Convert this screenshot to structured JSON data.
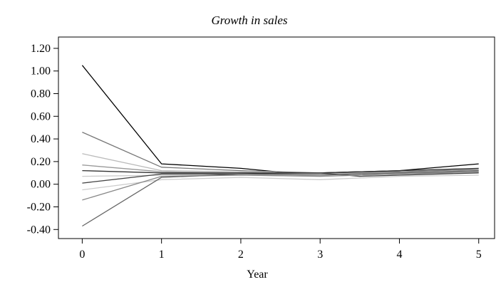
{
  "chart_data": {
    "type": "line",
    "title": "Growth in sales",
    "xlabel": "Year",
    "ylabel": "",
    "x": [
      0,
      1,
      2,
      3,
      4,
      5
    ],
    "xlim": [
      -0.3,
      5.2
    ],
    "ylim": [
      -0.48,
      1.3
    ],
    "x_ticks": [
      0,
      1,
      2,
      3,
      4,
      5
    ],
    "x_tick_labels": [
      "0",
      "1",
      "2",
      "3",
      "4",
      "5"
    ],
    "y_ticks": [
      -0.4,
      -0.2,
      0.0,
      0.2,
      0.4,
      0.6,
      0.8,
      1.0,
      1.2
    ],
    "y_tick_labels": [
      "-0.40",
      "-0.20",
      "0.00",
      "0.20",
      "0.40",
      "0.60",
      "0.80",
      "1.00",
      "1.20"
    ],
    "grid": false,
    "legend": "none",
    "series": [
      {
        "color": "#000000",
        "points": [
          [
            0,
            1.05
          ],
          [
            1,
            0.18
          ],
          [
            2,
            0.14
          ],
          [
            2.6,
            0.1
          ],
          [
            3,
            0.1
          ],
          [
            4,
            0.12
          ],
          [
            5,
            0.18
          ]
        ]
      },
      {
        "color": "#777777",
        "points": [
          [
            0,
            0.46
          ],
          [
            1,
            0.15
          ],
          [
            2,
            0.12
          ],
          [
            3,
            0.1
          ],
          [
            4,
            0.11
          ],
          [
            5,
            0.13
          ]
        ]
      },
      {
        "color": "#bbbbbb",
        "points": [
          [
            0,
            0.27
          ],
          [
            1,
            0.12
          ],
          [
            2,
            0.11
          ],
          [
            3,
            0.09
          ],
          [
            4,
            0.1
          ],
          [
            5,
            0.12
          ]
        ]
      },
      {
        "color": "#999999",
        "points": [
          [
            0,
            0.17
          ],
          [
            1,
            0.11
          ],
          [
            2,
            0.1
          ],
          [
            3,
            0.09
          ],
          [
            4,
            0.1
          ],
          [
            5,
            0.11
          ]
        ]
      },
      {
        "color": "#333333",
        "points": [
          [
            0,
            0.12
          ],
          [
            1,
            0.1
          ],
          [
            2,
            0.1
          ],
          [
            3,
            0.1
          ],
          [
            4,
            0.12
          ],
          [
            5,
            0.14
          ]
        ]
      },
      {
        "color": "#cccccc",
        "points": [
          [
            0,
            0.07
          ],
          [
            1,
            0.08
          ],
          [
            2,
            0.08
          ],
          [
            3,
            0.07
          ],
          [
            4,
            0.09
          ],
          [
            5,
            0.1
          ]
        ]
      },
      {
        "color": "#444444",
        "points": [
          [
            0,
            0.01
          ],
          [
            1,
            0.09
          ],
          [
            2,
            0.09
          ],
          [
            3,
            0.1
          ],
          [
            3.5,
            0.07
          ],
          [
            4,
            0.08
          ],
          [
            5,
            0.1
          ]
        ]
      },
      {
        "color": "#cccccc",
        "points": [
          [
            0,
            -0.05
          ],
          [
            1,
            0.04
          ],
          [
            2,
            0.06
          ],
          [
            3,
            0.04
          ],
          [
            4,
            0.07
          ],
          [
            5,
            0.08
          ]
        ]
      },
      {
        "color": "#888888",
        "points": [
          [
            0,
            -0.14
          ],
          [
            1,
            0.07
          ],
          [
            2,
            0.08
          ],
          [
            3,
            0.07
          ],
          [
            4,
            0.09
          ],
          [
            5,
            0.11
          ]
        ]
      },
      {
        "color": "#666666",
        "points": [
          [
            0,
            -0.37
          ],
          [
            1,
            0.06
          ],
          [
            2,
            0.09
          ],
          [
            3,
            0.08
          ],
          [
            4,
            0.1
          ],
          [
            5,
            0.12
          ]
        ]
      }
    ]
  }
}
